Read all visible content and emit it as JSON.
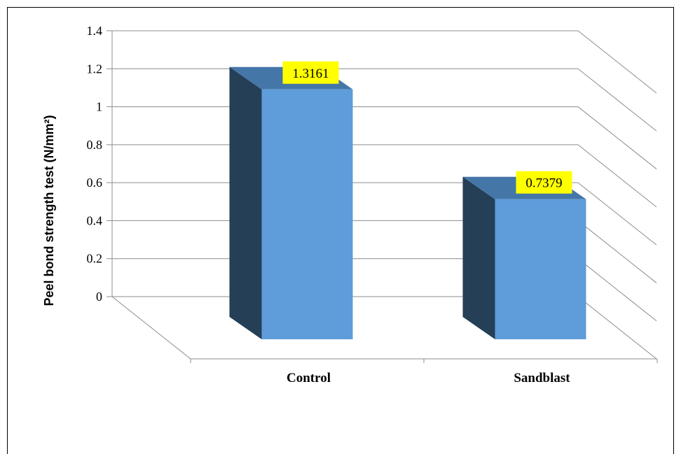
{
  "chart_data": {
    "type": "bar",
    "style": "3d-column",
    "categories": [
      "Control",
      "Sandblast"
    ],
    "values": [
      1.3161,
      0.7379
    ],
    "data_labels": [
      "1.3161",
      "0.7379"
    ],
    "title": "",
    "xlabel": "",
    "ylabel": "Peel bond strength test (N/mm²)",
    "ylim": [
      0,
      1.4
    ],
    "yticks": [
      0,
      0.2,
      0.4,
      0.6,
      0.8,
      1,
      1.2,
      1.4
    ],
    "ytick_labels": [
      "0",
      "0.2",
      "0.4",
      "0.6",
      "0.8",
      "1",
      "1.2",
      "1.4"
    ],
    "grid": true,
    "legend": "none",
    "colors": {
      "bar_front": "#5e9cda",
      "bar_side": "#243f56",
      "bar_top": "#4576a8",
      "data_label_bg": "#ffff00",
      "gridline": "#8c8c8c"
    }
  }
}
